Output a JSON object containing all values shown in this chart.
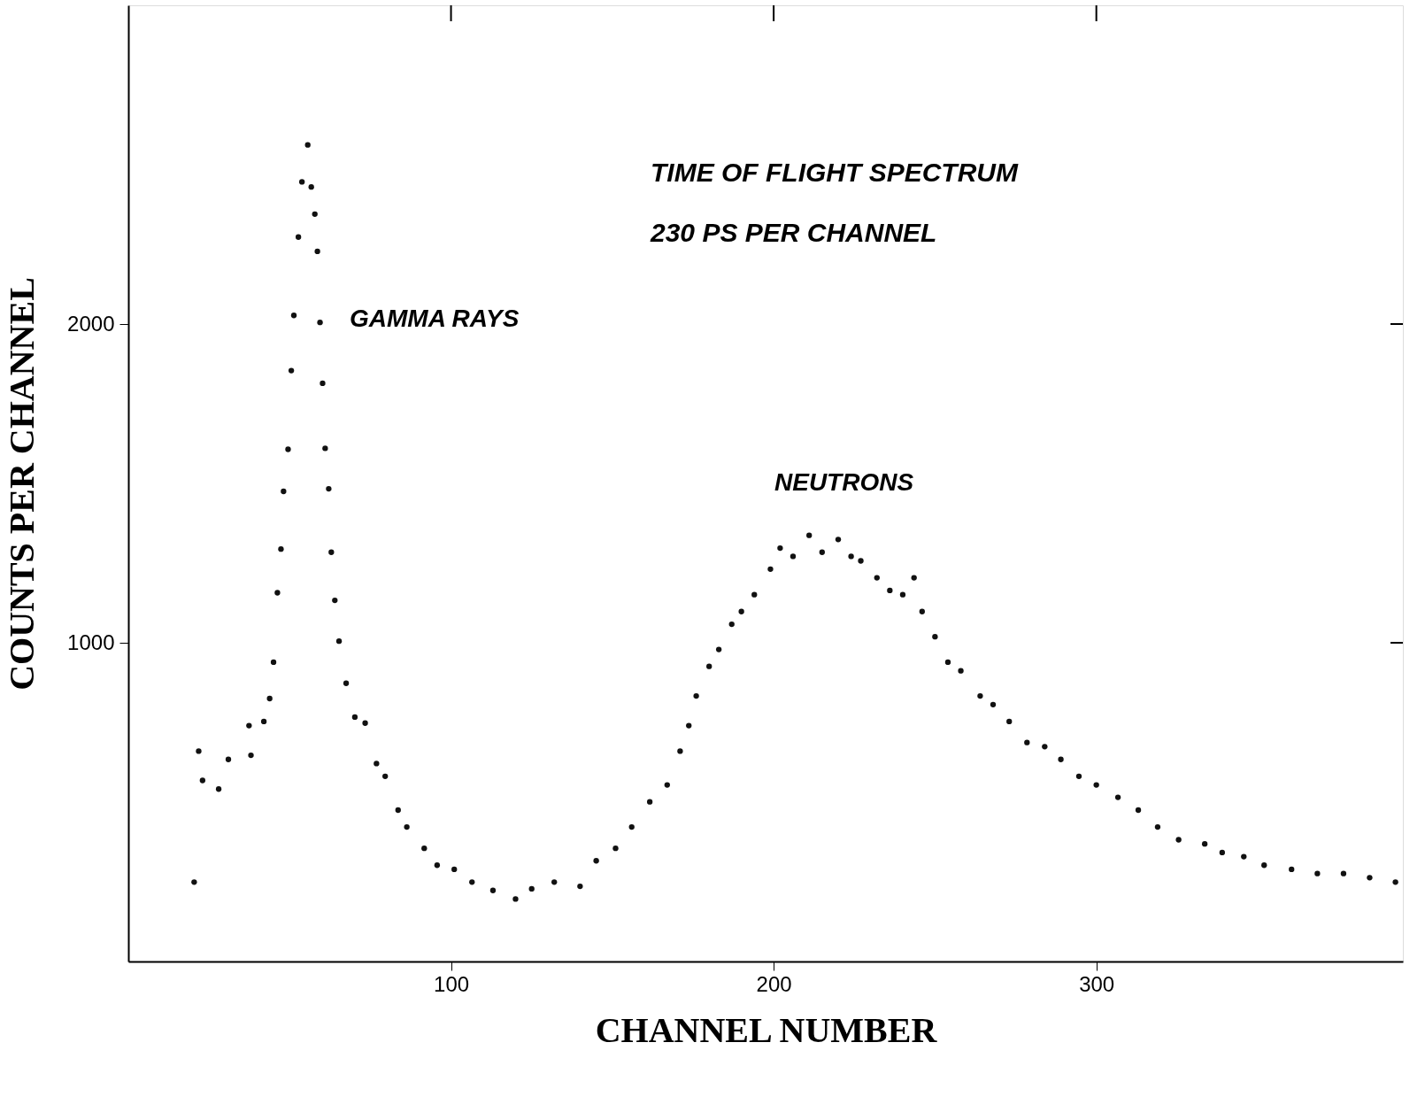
{
  "chart_data": {
    "type": "scatter",
    "title": "TIME OF FLIGHT SPECTRUM",
    "subtitle": "230 PS PER CHANNEL",
    "xlabel": "CHANNEL NUMBER",
    "ylabel": "COUNTS PER CHANNEL",
    "annotations": [
      "GAMMA RAYS",
      "NEUTRONS"
    ],
    "xlim": [
      0,
      395
    ],
    "ylim": [
      0,
      3000
    ],
    "xticks": [
      100,
      200,
      300
    ],
    "yticks": [
      1000,
      2000
    ],
    "grid": false,
    "marker": "circle",
    "series": [
      {
        "color": "#111111",
        "x": [
          20.4,
          21.8,
          23,
          28,
          31,
          37.4,
          38,
          42,
          43.8,
          45,
          46.2,
          47.3,
          48.1,
          49.5,
          50.5,
          51.3,
          52.7,
          53.8,
          55.6,
          56.7,
          57.8,
          58.6,
          59.4,
          60.2,
          61,
          62.1,
          62.9,
          64,
          65.3,
          67.5,
          70.2,
          73.4,
          76.9,
          79.6,
          83.6,
          86.3,
          91.7,
          95.7,
          101,
          106.5,
          113,
          120,
          125,
          132,
          140,
          145,
          151,
          156,
          161.6,
          167,
          171,
          173.7,
          176,
          180,
          183,
          187,
          190,
          194,
          199,
          202,
          206,
          211,
          215,
          220,
          224,
          227,
          232,
          236,
          240,
          243.5,
          246,
          250,
          254,
          258,
          264,
          268,
          273,
          278.5,
          284,
          289,
          294.6,
          300,
          306.7,
          313,
          319,
          325.5,
          333.6,
          339,
          345.7,
          352,
          360.5,
          368.5,
          376.6,
          384.7,
          392.7
        ],
        "values": [
          249,
          660,
          568,
          541,
          634,
          740,
          647,
          753,
          825,
          939,
          1157,
          1294,
          1475,
          1607,
          1854,
          2027,
          2273,
          2446,
          2562,
          2430,
          2345,
          2228,
          2005,
          1814,
          1610,
          1483,
          1284,
          1133,
          1005,
          873,
          767,
          748,
          621,
          581,
          475,
          422,
          355,
          302,
          289,
          249,
          223,
          196,
          228,
          249,
          236,
          316,
          355,
          422,
          501,
          554,
          660,
          740,
          833,
          926,
          979,
          1058,
          1098,
          1151,
          1231,
          1297,
          1271,
          1337,
          1284,
          1324,
          1271,
          1257,
          1204,
          1164,
          1151,
          1204,
          1098,
          1019,
          939,
          912,
          833,
          806,
          753,
          687,
          674,
          634,
          581,
          554,
          515,
          475,
          422,
          382,
          369,
          342,
          329,
          302,
          289,
          276,
          276,
          263,
          249
        ]
      }
    ]
  }
}
